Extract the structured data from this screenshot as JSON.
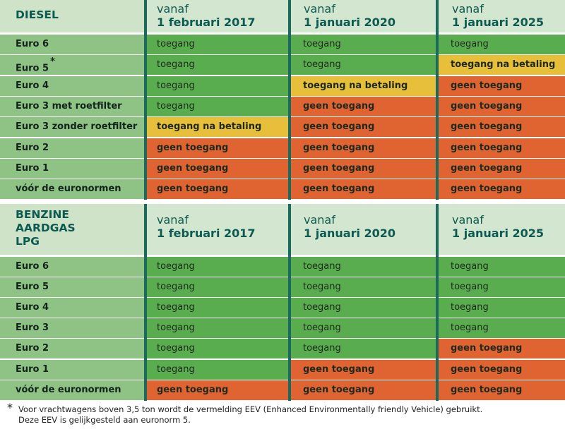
{
  "colors": {
    "ok": "#5aad4e",
    "paid": "#e7bf3a",
    "none": "#e06431",
    "label": "#8fc285",
    "header": "#d3e6cf",
    "divider": "#1c6a5e"
  },
  "diesel": {
    "title": "DIESEL",
    "columns": [
      {
        "l1": "vanaf",
        "l2": "1 februari 2017"
      },
      {
        "l1": "vanaf",
        "l2": "1 januari 2020"
      },
      {
        "l1": "vanaf",
        "l2": "1 januari 2025"
      }
    ],
    "rows": [
      {
        "label": "Euro 6",
        "cells": [
          {
            "t": "toegang",
            "s": "ok"
          },
          {
            "t": "toegang",
            "s": "ok"
          },
          {
            "t": "toegang",
            "s": "ok"
          }
        ]
      },
      {
        "label": "Euro 5",
        "note": "*",
        "cells": [
          {
            "t": "toegang",
            "s": "ok"
          },
          {
            "t": "toegang",
            "s": "ok"
          },
          {
            "t": "toegang na betaling",
            "s": "paid"
          }
        ]
      },
      {
        "label": "Euro 4",
        "cells": [
          {
            "t": "toegang",
            "s": "ok"
          },
          {
            "t": "toegang na betaling",
            "s": "paid"
          },
          {
            "t": "geen toegang",
            "s": "none"
          }
        ]
      },
      {
        "label": "Euro 3 met roetfilter",
        "cells": [
          {
            "t": "toegang",
            "s": "ok"
          },
          {
            "t": "geen toegang",
            "s": "none"
          },
          {
            "t": "geen toegang",
            "s": "none"
          }
        ]
      },
      {
        "label": "Euro 3 zonder roetfilter",
        "cells": [
          {
            "t": "toegang na betaling",
            "s": "paid"
          },
          {
            "t": "geen toegang",
            "s": "none"
          },
          {
            "t": "geen toegang",
            "s": "none"
          }
        ]
      },
      {
        "label": "Euro 2",
        "cells": [
          {
            "t": "geen toegang",
            "s": "none"
          },
          {
            "t": "geen toegang",
            "s": "none"
          },
          {
            "t": "geen toegang",
            "s": "none"
          }
        ]
      },
      {
        "label": "Euro 1",
        "cells": [
          {
            "t": "geen toegang",
            "s": "none"
          },
          {
            "t": "geen toegang",
            "s": "none"
          },
          {
            "t": "geen toegang",
            "s": "none"
          }
        ]
      },
      {
        "label": "vóór de euronormen",
        "cells": [
          {
            "t": "geen toegang",
            "s": "none"
          },
          {
            "t": "geen toegang",
            "s": "none"
          },
          {
            "t": "geen toegang",
            "s": "none"
          }
        ]
      }
    ]
  },
  "benzine": {
    "title_lines": [
      "BENZINE",
      "AARDGAS",
      "LPG"
    ],
    "columns": [
      {
        "l1": "vanaf",
        "l2": "1 februari 2017"
      },
      {
        "l1": "vanaf",
        "l2": "1 januari 2020"
      },
      {
        "l1": "vanaf",
        "l2": "1 januari 2025"
      }
    ],
    "rows": [
      {
        "label": "Euro 6",
        "cells": [
          {
            "t": "toegang",
            "s": "ok"
          },
          {
            "t": "toegang",
            "s": "ok"
          },
          {
            "t": "toegang",
            "s": "ok"
          }
        ]
      },
      {
        "label": "Euro 5",
        "cells": [
          {
            "t": "toegang",
            "s": "ok"
          },
          {
            "t": "toegang",
            "s": "ok"
          },
          {
            "t": "toegang",
            "s": "ok"
          }
        ]
      },
      {
        "label": "Euro 4",
        "cells": [
          {
            "t": "toegang",
            "s": "ok"
          },
          {
            "t": "toegang",
            "s": "ok"
          },
          {
            "t": "toegang",
            "s": "ok"
          }
        ]
      },
      {
        "label": "Euro 3",
        "cells": [
          {
            "t": "toegang",
            "s": "ok"
          },
          {
            "t": "toegang",
            "s": "ok"
          },
          {
            "t": "toegang",
            "s": "ok"
          }
        ]
      },
      {
        "label": "Euro 2",
        "cells": [
          {
            "t": "toegang",
            "s": "ok"
          },
          {
            "t": "toegang",
            "s": "ok"
          },
          {
            "t": "geen toegang",
            "s": "none"
          }
        ]
      },
      {
        "label": "Euro 1",
        "cells": [
          {
            "t": "toegang",
            "s": "ok"
          },
          {
            "t": "geen toegang",
            "s": "none"
          },
          {
            "t": "geen toegang",
            "s": "none"
          }
        ]
      },
      {
        "label": "vóór de euronormen",
        "cells": [
          {
            "t": "geen toegang",
            "s": "none"
          },
          {
            "t": "geen toegang",
            "s": "none"
          },
          {
            "t": "geen toegang",
            "s": "none"
          }
        ]
      }
    ]
  },
  "footnote": {
    "marker": "*",
    "line1": "Voor vrachtwagens boven 3,5 ton wordt de vermelding EEV (Enhanced Environmentally friendly Vehicle) gebruikt.",
    "line2": "Deze EEV is gelijkgesteld aan euronorm 5."
  }
}
